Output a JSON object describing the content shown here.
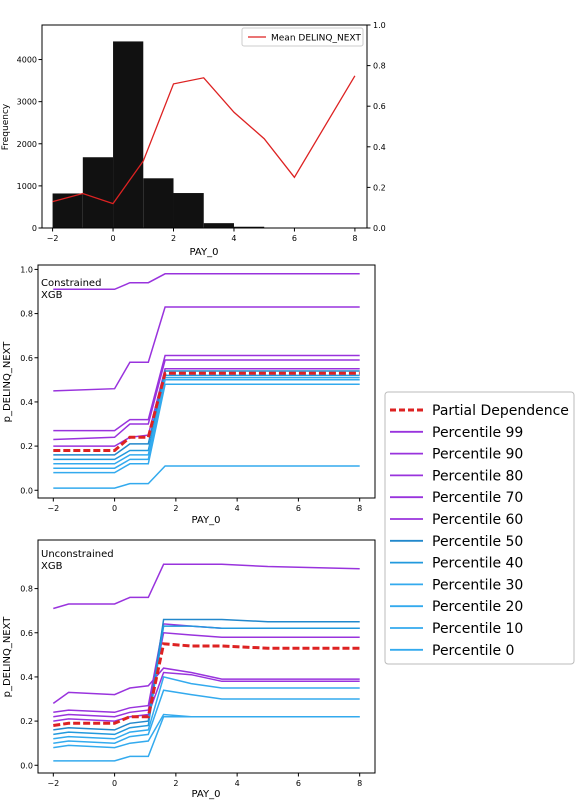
{
  "chart_data": [
    {
      "type": "bar",
      "xlabel": "PAY_0",
      "ylabel": "Frequency",
      "xlim": [
        -2.35,
        8.4
      ],
      "ylim": [
        0,
        4820
      ],
      "y2lim": [
        0,
        1.0
      ],
      "x_ticks": [
        -2,
        0,
        2,
        4,
        6,
        8
      ],
      "y_ticks": [
        0,
        1000,
        2000,
        3000,
        4000
      ],
      "y2_ticks": [
        0.0,
        0.2,
        0.4,
        0.6,
        0.8,
        1.0
      ],
      "bins": [
        {
          "x0": -2.0,
          "x1": -1.0,
          "value": 820
        },
        {
          "x0": -1.0,
          "x1": 0.0,
          "value": 1680
        },
        {
          "x0": 0.0,
          "x1": 1.0,
          "value": 4430
        },
        {
          "x0": 1.0,
          "x1": 2.0,
          "value": 1180
        },
        {
          "x0": 2.0,
          "x1": 3.0,
          "value": 830
        },
        {
          "x0": 3.0,
          "x1": 4.0,
          "value": 115
        },
        {
          "x0": 4.0,
          "x1": 5.0,
          "value": 30
        },
        {
          "x0": 5.0,
          "x1": 6.0,
          "value": 8
        }
      ],
      "series": [
        {
          "name": "Mean DELINQ_NEXT",
          "color": "#dd2222",
          "axis": "right",
          "x": [
            -2,
            -1,
            0,
            1,
            2,
            3,
            4,
            5,
            6,
            8
          ],
          "values": [
            0.13,
            0.17,
            0.12,
            0.33,
            0.71,
            0.74,
            0.57,
            0.44,
            0.25,
            0.75
          ]
        }
      ],
      "legend": "top-right"
    },
    {
      "type": "line",
      "annotation": [
        "Constrained",
        "XGB"
      ],
      "xlabel": "PAY_0",
      "ylabel": "p_DELINQ_NEXT",
      "xlim": [
        -2.5,
        8.5
      ],
      "ylim": [
        -0.035,
        1.02
      ],
      "x_ticks": [
        -2,
        0,
        2,
        4,
        6,
        8
      ],
      "y_ticks": [
        0.0,
        0.2,
        0.4,
        0.6,
        0.8,
        1.0
      ],
      "x": [
        -2,
        0,
        0.5,
        1.1,
        1.65,
        8
      ],
      "series": [
        {
          "name": "Percentile 99",
          "color": "#9933dd",
          "values": [
            0.91,
            0.91,
            0.94,
            0.94,
            0.98,
            0.98
          ]
        },
        {
          "name": "Percentile 90",
          "color": "#9933dd",
          "values": [
            0.45,
            0.46,
            0.58,
            0.58,
            0.83,
            0.83
          ]
        },
        {
          "name": "Percentile 80",
          "color": "#9933dd",
          "values": [
            0.27,
            0.27,
            0.32,
            0.32,
            0.61,
            0.61
          ]
        },
        {
          "name": "Percentile 70",
          "color": "#9933dd",
          "values": [
            0.23,
            0.24,
            0.3,
            0.3,
            0.59,
            0.59
          ]
        },
        {
          "name": "Percentile 60",
          "color": "#9933dd",
          "values": [
            0.2,
            0.2,
            0.24,
            0.25,
            0.55,
            0.55
          ]
        },
        {
          "name": "Partial Dependence",
          "color": "#dd2222",
          "dashed": true,
          "values": [
            0.18,
            0.18,
            0.24,
            0.24,
            0.53,
            0.53
          ]
        },
        {
          "name": "Percentile 50",
          "color": "#2288cc",
          "values": [
            0.16,
            0.16,
            0.21,
            0.21,
            0.54,
            0.54
          ]
        },
        {
          "name": "Percentile 40",
          "color": "#2299dd",
          "values": [
            0.14,
            0.14,
            0.18,
            0.18,
            0.52,
            0.52
          ]
        },
        {
          "name": "Percentile 30",
          "color": "#33aaee",
          "values": [
            0.12,
            0.12,
            0.16,
            0.16,
            0.51,
            0.51
          ]
        },
        {
          "name": "Percentile 20",
          "color": "#33aaee",
          "values": [
            0.1,
            0.1,
            0.14,
            0.14,
            0.5,
            0.5
          ]
        },
        {
          "name": "Percentile 10",
          "color": "#33aaee",
          "values": [
            0.08,
            0.08,
            0.12,
            0.12,
            0.48,
            0.48
          ]
        },
        {
          "name": "Percentile 0",
          "color": "#33aaee",
          "values": [
            0.01,
            0.01,
            0.03,
            0.03,
            0.11,
            0.11
          ]
        }
      ]
    },
    {
      "type": "line",
      "annotation": [
        "Unconstrained",
        "XGB"
      ],
      "xlabel": "PAY_0",
      "ylabel": "p_DELINQ_NEXT",
      "xlim": [
        -2.5,
        8.5
      ],
      "ylim": [
        -0.035,
        1.02
      ],
      "x_ticks": [
        -2,
        0,
        2,
        4,
        6,
        8
      ],
      "y_ticks": [
        0.0,
        0.2,
        0.4,
        0.6,
        0.8
      ],
      "x": [
        -2,
        -1.5,
        0,
        0.5,
        1.1,
        1.6,
        2.5,
        3.5,
        5,
        8
      ],
      "series": [
        {
          "name": "Percentile 99",
          "color": "#9933dd",
          "values": [
            0.71,
            0.73,
            0.73,
            0.76,
            0.76,
            0.91,
            0.91,
            0.91,
            0.9,
            0.89
          ]
        },
        {
          "name": "Percentile 90",
          "color": "#9933dd",
          "values": [
            0.28,
            0.33,
            0.32,
            0.35,
            0.36,
            0.44,
            0.42,
            0.39,
            0.39,
            0.39
          ]
        },
        {
          "name": "Percentile 80",
          "color": "#9933dd",
          "values": [
            0.24,
            0.25,
            0.24,
            0.26,
            0.27,
            0.64,
            0.63,
            0.62,
            0.62,
            0.62
          ]
        },
        {
          "name": "Percentile 70",
          "color": "#9933dd",
          "values": [
            0.22,
            0.23,
            0.22,
            0.24,
            0.25,
            0.6,
            0.59,
            0.58,
            0.58,
            0.58
          ]
        },
        {
          "name": "Percentile 60",
          "color": "#9933dd",
          "values": [
            0.2,
            0.21,
            0.2,
            0.22,
            0.23,
            0.42,
            0.41,
            0.38,
            0.38,
            0.38
          ]
        },
        {
          "name": "Partial Dependence",
          "color": "#dd2222",
          "dashed": true,
          "values": [
            0.18,
            0.19,
            0.19,
            0.22,
            0.22,
            0.55,
            0.54,
            0.54,
            0.53,
            0.53
          ]
        },
        {
          "name": "Percentile 50",
          "color": "#2288cc",
          "values": [
            0.16,
            0.17,
            0.16,
            0.19,
            0.2,
            0.66,
            0.66,
            0.66,
            0.65,
            0.65
          ]
        },
        {
          "name": "Percentile 40",
          "color": "#2299dd",
          "values": [
            0.14,
            0.15,
            0.14,
            0.17,
            0.18,
            0.63,
            0.63,
            0.62,
            0.62,
            0.62
          ]
        },
        {
          "name": "Percentile 30",
          "color": "#33aaee",
          "values": [
            0.12,
            0.13,
            0.12,
            0.15,
            0.16,
            0.4,
            0.37,
            0.35,
            0.35,
            0.35
          ]
        },
        {
          "name": "Percentile 20",
          "color": "#33aaee",
          "values": [
            0.1,
            0.11,
            0.1,
            0.13,
            0.14,
            0.34,
            0.32,
            0.3,
            0.3,
            0.3
          ]
        },
        {
          "name": "Percentile 10",
          "color": "#33aaee",
          "values": [
            0.08,
            0.09,
            0.08,
            0.1,
            0.11,
            0.23,
            0.22,
            0.22,
            0.22,
            0.22
          ]
        },
        {
          "name": "Percentile 0",
          "color": "#33aaee",
          "values": [
            0.02,
            0.02,
            0.02,
            0.04,
            0.04,
            0.22,
            0.22,
            0.22,
            0.22,
            0.22
          ]
        }
      ]
    }
  ],
  "legend": {
    "placement": "right",
    "items": [
      {
        "label": "Partial Dependence",
        "color": "#dd2222",
        "dashed": true
      },
      {
        "label": "Percentile 99",
        "color": "#9933dd"
      },
      {
        "label": "Percentile 90",
        "color": "#9933dd"
      },
      {
        "label": "Percentile 80",
        "color": "#9933dd"
      },
      {
        "label": "Percentile 70",
        "color": "#9933dd"
      },
      {
        "label": "Percentile 60",
        "color": "#9933dd"
      },
      {
        "label": "Percentile 50",
        "color": "#2288cc"
      },
      {
        "label": "Percentile 40",
        "color": "#2299dd"
      },
      {
        "label": "Percentile 30",
        "color": "#33aaee"
      },
      {
        "label": "Percentile 20",
        "color": "#33aaee"
      },
      {
        "label": "Percentile 10",
        "color": "#33aaee"
      },
      {
        "label": "Percentile 0",
        "color": "#33aaee"
      }
    ]
  }
}
